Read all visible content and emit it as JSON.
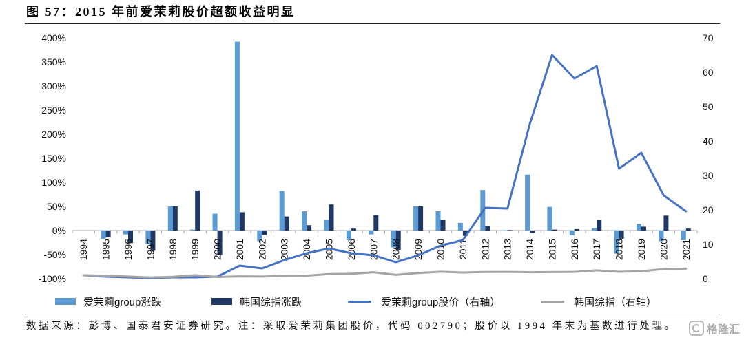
{
  "chart_data": {
    "type": "bar",
    "title": "图 57：2015 年前爱茉莉股价超额收益明显",
    "categories": [
      "1994",
      "1995",
      "1996",
      "1997",
      "1998",
      "1999",
      "2000",
      "2001",
      "2002",
      "2003",
      "2004",
      "2005",
      "2006",
      "2007",
      "2008",
      "2009",
      "2010",
      "2011",
      "2012",
      "2013",
      "2014",
      "2015",
      "2016",
      "2017",
      "2018",
      "2019",
      "2020",
      "2021"
    ],
    "series": [
      {
        "name": "爱茉莉group涨跌",
        "type": "bar",
        "axis": "left",
        "color": "#5b9bd5",
        "values": [
          null,
          -17,
          -8,
          -28,
          50,
          2,
          35,
          392,
          -22,
          82,
          40,
          22,
          -20,
          -8,
          -35,
          50,
          40,
          16,
          84,
          -1,
          116,
          49,
          -10,
          5,
          -48,
          14,
          -22,
          -20
        ]
      },
      {
        "name": "韩国综指涨跌",
        "type": "bar",
        "axis": "left",
        "color": "#1f3864",
        "values": [
          null,
          -14,
          -26,
          -42,
          50,
          83,
          -51,
          38,
          -10,
          29,
          11,
          54,
          4,
          32,
          -41,
          50,
          22,
          -11,
          9,
          1,
          -5,
          2,
          3,
          22,
          -17,
          8,
          31,
          4
        ]
      },
      {
        "name": "爱茉莉group股价（右轴）",
        "type": "line",
        "axis": "right",
        "color": "#4472c4",
        "values": [
          1.0,
          0.6,
          0.4,
          0.2,
          0.4,
          0.4,
          0.6,
          3.8,
          3.0,
          5.4,
          7.4,
          8.8,
          7.4,
          6.8,
          4.8,
          6.8,
          9.6,
          11.2,
          20.6,
          20.4,
          45.0,
          65.0,
          58.2,
          61.8,
          32.0,
          36.6,
          24.2,
          19.6
        ]
      },
      {
        "name": "韩国综指（右轴）",
        "type": "line",
        "axis": "right",
        "color": "#a5a5a5",
        "values": [
          1.0,
          0.86,
          0.63,
          0.37,
          0.55,
          1.01,
          0.5,
          0.68,
          0.62,
          0.8,
          0.88,
          1.36,
          1.41,
          1.87,
          1.11,
          1.66,
          2.02,
          1.8,
          1.96,
          1.98,
          1.88,
          1.93,
          1.99,
          2.42,
          2.0,
          2.16,
          2.82,
          2.93
        ]
      }
    ],
    "y_left": {
      "ylim": [
        -100,
        400
      ],
      "ticks": [
        -100,
        -50,
        0,
        50,
        100,
        150,
        200,
        250,
        300,
        350,
        400
      ],
      "unit": "%"
    },
    "y_right": {
      "ylim": [
        0,
        70
      ],
      "ticks": [
        0,
        10,
        20,
        30,
        40,
        50,
        60,
        70
      ]
    },
    "grid": false,
    "legend_position": "bottom"
  },
  "source_note": "数据来源：彭博、国泰君安证券研究。注：采取爱茉莉集团股价，代码 002790；股价以 1994 年末为基数进行处理。",
  "watermark": "格隆汇"
}
